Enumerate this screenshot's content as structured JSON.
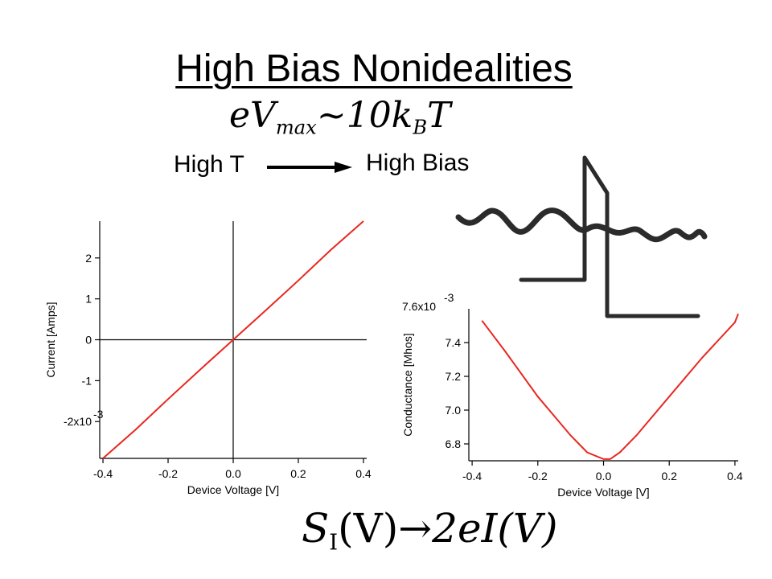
{
  "slide": {
    "title": "High Bias Nonidealities",
    "eq_top": {
      "a": "eV",
      "sub": "max",
      "b": "~10k",
      "sub2": "B",
      "c": "T"
    },
    "eq_bottom": {
      "a": "S",
      "sub": "I",
      "b": "(V)",
      "arrow": "→",
      "c": "2eI(V)"
    },
    "high_t_label": "High T",
    "high_bias_label": "High Bias"
  },
  "colors": {
    "curve": "#e8281f",
    "axis": "#000000",
    "diagram": "#2b2b2b"
  },
  "chart_data": [
    {
      "type": "line",
      "title": "",
      "xlabel": "Device Voltage [V]",
      "ylabel": "Current [Amps]",
      "xlim": [
        -0.41,
        0.41
      ],
      "ylim": [
        -0.0029,
        0.0029
      ],
      "x_ticks": [
        -0.4,
        -0.2,
        0.0,
        0.2,
        0.4
      ],
      "x_tick_labels": [
        "-0.4",
        "-0.2",
        "0.0",
        "0.2",
        "0.4"
      ],
      "y_ticks": [
        -0.002,
        -0.001,
        0,
        0.001,
        0.002
      ],
      "y_tick_labels": [
        "-2x10",
        "-1",
        "0",
        "1",
        "2"
      ],
      "y_tick_exponent": "-3",
      "zero_lines": true,
      "series": [
        {
          "x": [
            -0.4,
            -0.3,
            -0.2,
            -0.1,
            0.0,
            0.1,
            0.2,
            0.3,
            0.4
          ],
          "values": [
            -0.0029,
            -0.0022,
            -0.00145,
            -0.00072,
            0.0,
            0.00072,
            0.00145,
            0.0022,
            0.0029
          ]
        }
      ]
    },
    {
      "type": "line",
      "title": "",
      "xlabel": "Device Voltage [V]",
      "ylabel": "Conductance [Mhos]",
      "xlim": [
        -0.41,
        0.41
      ],
      "ylim": [
        0.0067,
        0.0076
      ],
      "x_ticks": [
        -0.4,
        -0.2,
        0.0,
        0.2,
        0.4
      ],
      "x_tick_labels": [
        "-0.4",
        "-0.2",
        "0.0",
        "0.2",
        "0.4"
      ],
      "y_ticks": [
        0.0068,
        0.007,
        0.0072,
        0.0074
      ],
      "y_tick_labels": [
        "6.8",
        "7.0",
        "7.2",
        "7.4"
      ],
      "y_top_label": "7.6x10",
      "y_top_exponent": "-3",
      "series": [
        {
          "x": [
            -0.37,
            -0.3,
            -0.2,
            -0.1,
            -0.05,
            0.0,
            0.02,
            0.05,
            0.1,
            0.2,
            0.3,
            0.4,
            0.41
          ],
          "values": [
            0.00753,
            0.00735,
            0.00708,
            0.00685,
            0.00675,
            0.00671,
            0.00671,
            0.00675,
            0.00685,
            0.00708,
            0.00731,
            0.00752,
            0.00757
          ]
        }
      ]
    }
  ]
}
